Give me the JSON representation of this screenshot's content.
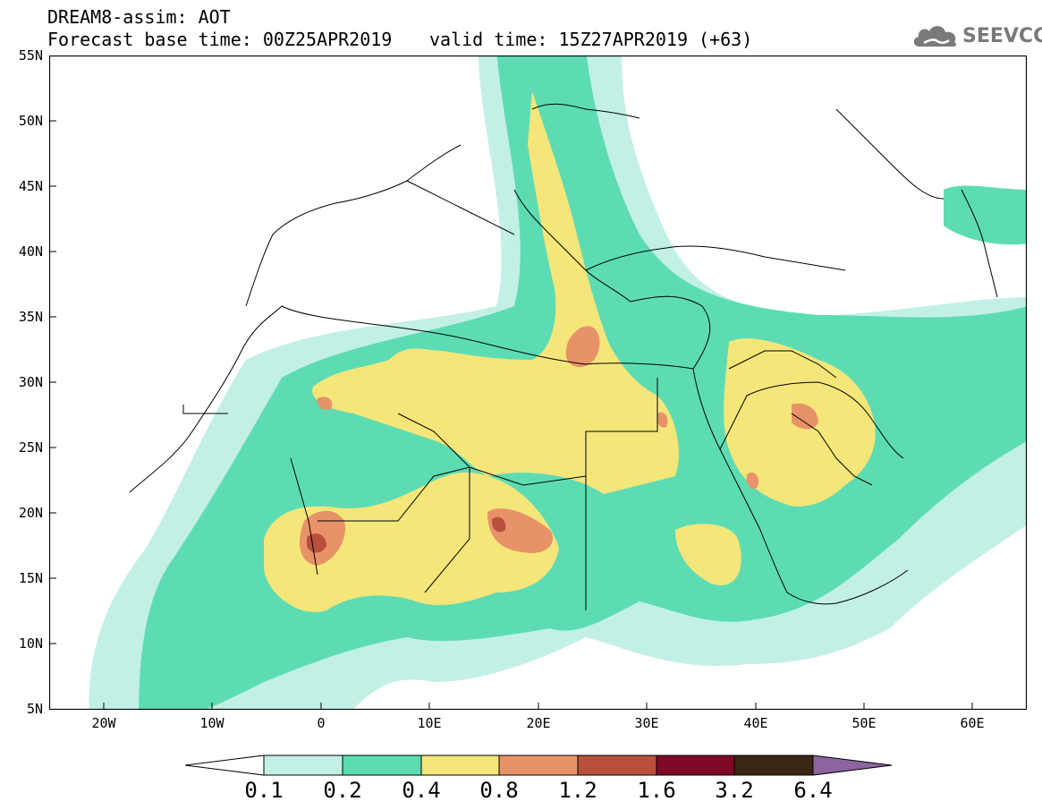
{
  "header": {
    "line1": "DREAM8-assim: AOT",
    "line2": "Forecast base time: 00Z25APR2019",
    "line3": "valid time: 15Z27APR2019 (+63)"
  },
  "logo": {
    "text": "SEEVCCC",
    "icon": "cloud-icon"
  },
  "map": {
    "lat_range": [
      5,
      55
    ],
    "lon_range": [
      -25,
      65
    ],
    "y_ticks": [
      "55N",
      "50N",
      "45N",
      "40N",
      "35N",
      "30N",
      "25N",
      "20N",
      "15N",
      "10N",
      "5N"
    ],
    "x_ticks": [
      "20W",
      "10W",
      "0",
      "10E",
      "20E",
      "30E",
      "40E",
      "50E",
      "60E"
    ]
  },
  "legend": {
    "labels": [
      "0.1",
      "0.2",
      "0.4",
      "0.8",
      "1.2",
      "1.6",
      "3.2",
      "6.4"
    ],
    "colors": [
      "#ffffff",
      "#c3f0e6",
      "#5ddcb4",
      "#f5e67a",
      "#e8926a",
      "#b9503c",
      "#7f0a28",
      "#3c2614",
      "#8c64a0"
    ]
  }
}
